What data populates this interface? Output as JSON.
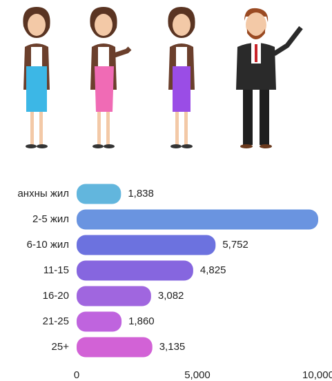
{
  "chart_data": {
    "type": "bar",
    "orientation": "horizontal",
    "categories": [
      "анхны жил",
      "2-5 жил",
      "6-10 жил",
      "11-15",
      "16-20",
      "21-25",
      "25+"
    ],
    "values": [
      1838,
      10000,
      5752,
      4825,
      3082,
      1860,
      3135
    ],
    "value_labels": [
      "1,838",
      null,
      "5,752",
      "4,825",
      "3,082",
      "1,860",
      "3,135"
    ],
    "colors": [
      "#62b6dd",
      "#6a94e0",
      "#6c72df",
      "#8666df",
      "#a066df",
      "#bf64de",
      "#d262d6"
    ],
    "xlim": [
      0,
      10000
    ],
    "xticks": [
      0,
      {
        "value": 5000,
        "label": "5,000"
      },
      {
        "value": 10000,
        "label": "10,000"
      }
    ],
    "grid": false
  }
}
